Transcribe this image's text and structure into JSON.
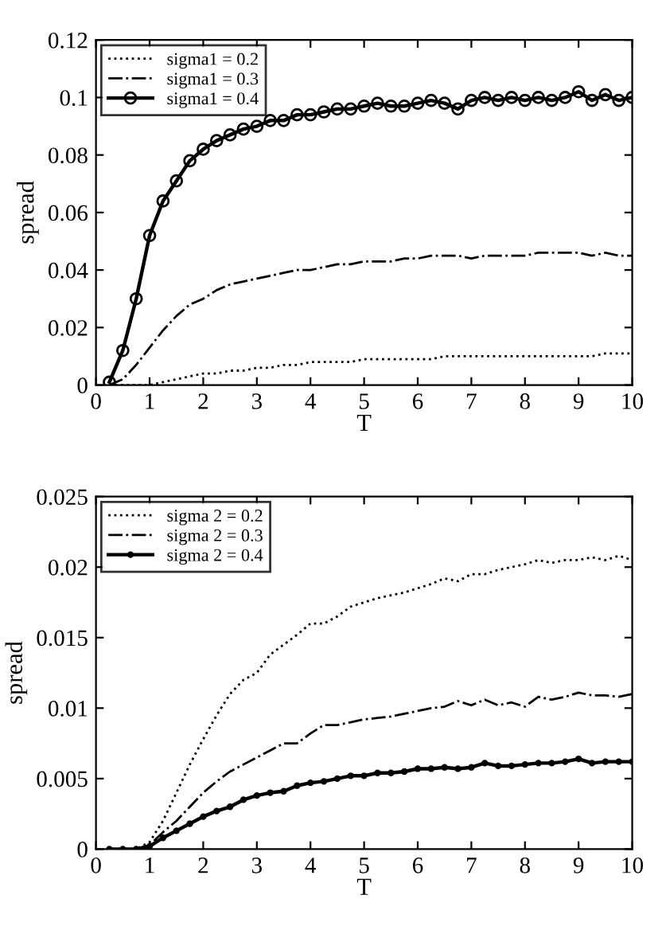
{
  "chart_data": [
    {
      "type": "line",
      "xlabel": "T",
      "ylabel": "spread",
      "xlim": [
        0,
        10
      ],
      "xticks": [
        0,
        1,
        2,
        3,
        4,
        5,
        6,
        7,
        8,
        9,
        10
      ],
      "ylim": [
        0,
        0.12
      ],
      "yticks": [
        0,
        0.02,
        0.04,
        0.06,
        0.08,
        0.1,
        0.12
      ],
      "legend": "top left",
      "x": [
        0.25,
        0.5,
        0.75,
        1.0,
        1.25,
        1.5,
        1.75,
        2.0,
        2.25,
        2.5,
        2.75,
        3.0,
        3.25,
        3.5,
        3.75,
        4.0,
        4.25,
        4.5,
        4.75,
        5.0,
        5.25,
        5.5,
        5.75,
        6.0,
        6.25,
        6.5,
        6.75,
        7.0,
        7.25,
        7.5,
        7.75,
        8.0,
        8.25,
        8.5,
        8.75,
        9.0,
        9.25,
        9.5,
        9.75,
        10.0
      ],
      "series": [
        {
          "name": "sigma1 = 0.2",
          "color": "#000000",
          "line_style": "dotted",
          "marker": "none",
          "values": [
            0,
            0,
            0,
            0,
            0.001,
            0.002,
            0.003,
            0.004,
            0.004,
            0.005,
            0.005,
            0.006,
            0.006,
            0.007,
            0.007,
            0.008,
            0.008,
            0.008,
            0.008,
            0.009,
            0.009,
            0.009,
            0.009,
            0.009,
            0.009,
            0.01,
            0.01,
            0.01,
            0.01,
            0.01,
            0.01,
            0.01,
            0.01,
            0.01,
            0.01,
            0.01,
            0.01,
            0.011,
            0.011,
            0.011
          ]
        },
        {
          "name": "sigma1 = 0.3",
          "color": "#000000",
          "line_style": "dashdot",
          "marker": "none",
          "values": [
            0,
            0.002,
            0.007,
            0.013,
            0.019,
            0.024,
            0.028,
            0.03,
            0.033,
            0.035,
            0.036,
            0.037,
            0.038,
            0.039,
            0.04,
            0.04,
            0.041,
            0.042,
            0.042,
            0.043,
            0.043,
            0.043,
            0.044,
            0.044,
            0.045,
            0.045,
            0.045,
            0.044,
            0.045,
            0.045,
            0.045,
            0.045,
            0.046,
            0.046,
            0.046,
            0.046,
            0.045,
            0.046,
            0.045,
            0.045
          ]
        },
        {
          "name": "sigma1 = 0.4",
          "color": "#000000",
          "line_style": "solid",
          "marker": "circle",
          "values": [
            0.001,
            0.012,
            0.03,
            0.052,
            0.064,
            0.071,
            0.078,
            0.082,
            0.085,
            0.087,
            0.089,
            0.09,
            0.092,
            0.092,
            0.094,
            0.094,
            0.095,
            0.096,
            0.096,
            0.097,
            0.098,
            0.097,
            0.097,
            0.098,
            0.099,
            0.098,
            0.096,
            0.099,
            0.1,
            0.099,
            0.1,
            0.099,
            0.1,
            0.099,
            0.1,
            0.102,
            0.099,
            0.101,
            0.099,
            0.1
          ]
        }
      ]
    },
    {
      "type": "line",
      "xlabel": "T",
      "ylabel": "spread",
      "xlim": [
        0,
        10
      ],
      "xticks": [
        0,
        1,
        2,
        3,
        4,
        5,
        6,
        7,
        8,
        9,
        10
      ],
      "ylim": [
        0,
        0.025
      ],
      "yticks": [
        0,
        0.005,
        0.01,
        0.015,
        0.02,
        0.025
      ],
      "legend": "top left",
      "x": [
        0.25,
        0.5,
        0.75,
        1.0,
        1.25,
        1.5,
        1.75,
        2.0,
        2.25,
        2.5,
        2.75,
        3.0,
        3.25,
        3.5,
        3.75,
        4.0,
        4.25,
        4.5,
        4.75,
        5.0,
        5.25,
        5.5,
        5.75,
        6.0,
        6.25,
        6.5,
        6.75,
        7.0,
        7.25,
        7.5,
        7.75,
        8.0,
        8.25,
        8.5,
        8.75,
        9.0,
        9.25,
        9.5,
        9.75,
        10.0
      ],
      "series": [
        {
          "name": "sigma 2 = 0.2",
          "color": "#000000",
          "line_style": "dotted",
          "marker": "none",
          "values": [
            0,
            0,
            0,
            0.0005,
            0.002,
            0.004,
            0.006,
            0.0078,
            0.0095,
            0.011,
            0.012,
            0.0125,
            0.0138,
            0.0145,
            0.0152,
            0.016,
            0.016,
            0.0165,
            0.0172,
            0.0175,
            0.0178,
            0.018,
            0.0182,
            0.0185,
            0.0188,
            0.0192,
            0.019,
            0.0195,
            0.0195,
            0.0198,
            0.02,
            0.0202,
            0.0205,
            0.0203,
            0.0205,
            0.0205,
            0.0207,
            0.0205,
            0.0208,
            0.0205
          ]
        },
        {
          "name": "sigma 2 = 0.3",
          "color": "#000000",
          "line_style": "dashdot",
          "marker": "none",
          "values": [
            0,
            0,
            0,
            0.0003,
            0.0012,
            0.002,
            0.003,
            0.004,
            0.0048,
            0.0055,
            0.006,
            0.0065,
            0.007,
            0.0075,
            0.0075,
            0.0082,
            0.0088,
            0.0088,
            0.009,
            0.0092,
            0.0093,
            0.0094,
            0.0096,
            0.0098,
            0.01,
            0.0101,
            0.0105,
            0.0102,
            0.0106,
            0.0102,
            0.0104,
            0.0101,
            0.0108,
            0.0106,
            0.0108,
            0.0111,
            0.0109,
            0.0109,
            0.0108,
            0.011
          ]
        },
        {
          "name": "sigma 2 = 0.4",
          "color": "#000000",
          "line_style": "solid",
          "marker": "dot",
          "values": [
            0,
            0,
            0,
            0.0002,
            0.0008,
            0.0013,
            0.0018,
            0.0023,
            0.0027,
            0.003,
            0.0035,
            0.0038,
            0.004,
            0.0041,
            0.0045,
            0.0047,
            0.0048,
            0.005,
            0.0052,
            0.0052,
            0.0054,
            0.0054,
            0.0055,
            0.0057,
            0.0057,
            0.0058,
            0.0057,
            0.0058,
            0.0061,
            0.0059,
            0.0059,
            0.006,
            0.0061,
            0.0061,
            0.0062,
            0.0064,
            0.0061,
            0.0062,
            0.0062,
            0.0062
          ]
        }
      ]
    }
  ]
}
